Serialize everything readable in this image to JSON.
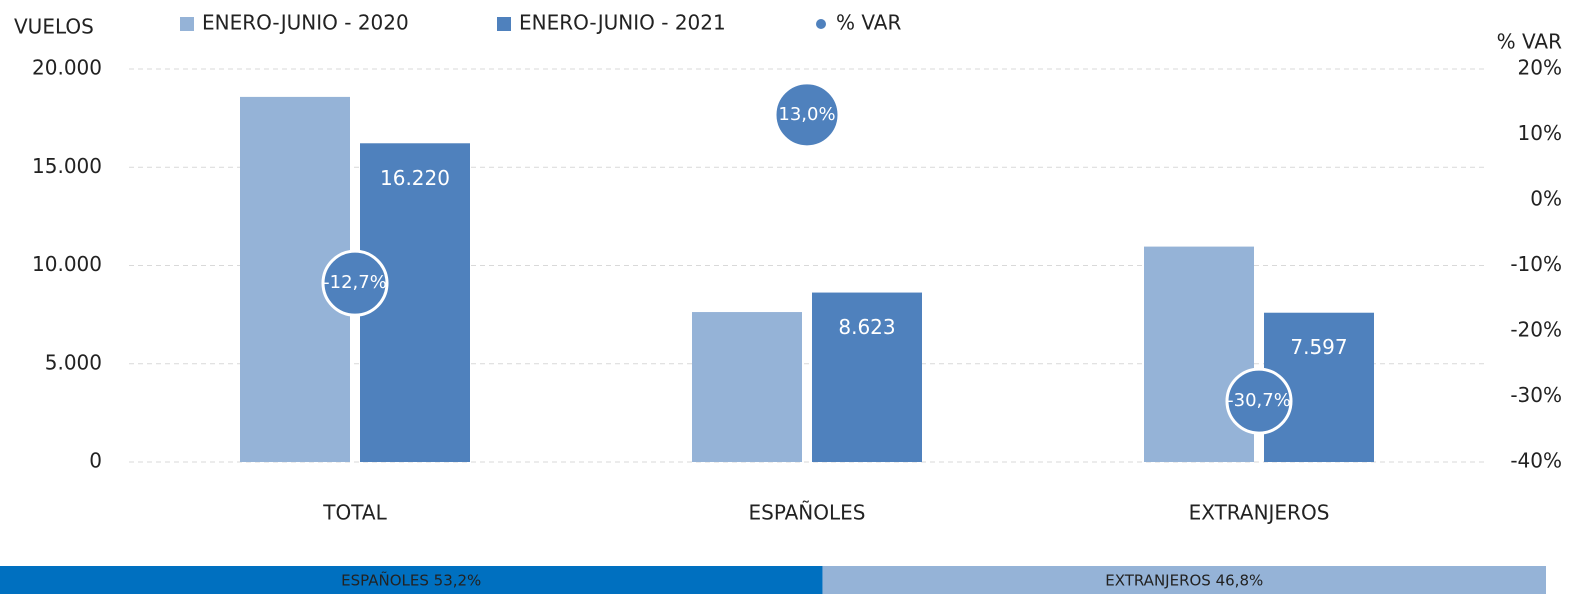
{
  "chart_data": {
    "type": "bar",
    "y_label": "VUELOS",
    "y2_label": "% VAR",
    "categories": [
      "TOTAL",
      "ESPAÑOLES",
      "EXTRANJEROS"
    ],
    "series": [
      {
        "name": "ENERO-JUNIO - 2020",
        "color": "#95b3d7",
        "values": [
          18580,
          7631,
          10962
        ]
      },
      {
        "name": "ENERO-JUNIO - 2021",
        "color": "#4f81bd",
        "values": [
          16220,
          8623,
          7597
        ],
        "value_labels": [
          "16.220",
          "8.623",
          "7.597"
        ]
      },
      {
        "name": "% VAR",
        "color": "#4f81bd",
        "axis": "y2",
        "type": "scatter",
        "values": [
          -12.7,
          13.0,
          -30.7
        ],
        "value_labels": [
          "-12,7%",
          "13,0%",
          "-30,7%"
        ]
      }
    ],
    "ylim": [
      0,
      20000
    ],
    "yticks": [
      0,
      {
        "value": 5000,
        "label": "5.000"
      },
      {
        "value": 10000,
        "label": "10.000"
      },
      {
        "value": 15000,
        "label": "15.000"
      },
      {
        "value": 20000,
        "label": "20.000"
      }
    ],
    "y2lim": [
      -40,
      20
    ],
    "y2ticks": [
      {
        "value": -40,
        "label": "-40%"
      },
      {
        "value": -30,
        "label": "-30%"
      },
      {
        "value": -20,
        "label": "-20%"
      },
      {
        "value": -10,
        "label": "-10%"
      },
      {
        "value": 0,
        "label": "0%"
      },
      {
        "value": 10,
        "label": "10%"
      },
      {
        "value": 20,
        "label": "20%"
      }
    ],
    "grid": true,
    "share": [
      {
        "label": "ESPAÑOLES 53,2%",
        "value": 53.2,
        "color": "#0070c0"
      },
      {
        "label": "EXTRANJEROS 46,8%",
        "value": 46.8,
        "color": "#95b3d7"
      }
    ]
  }
}
